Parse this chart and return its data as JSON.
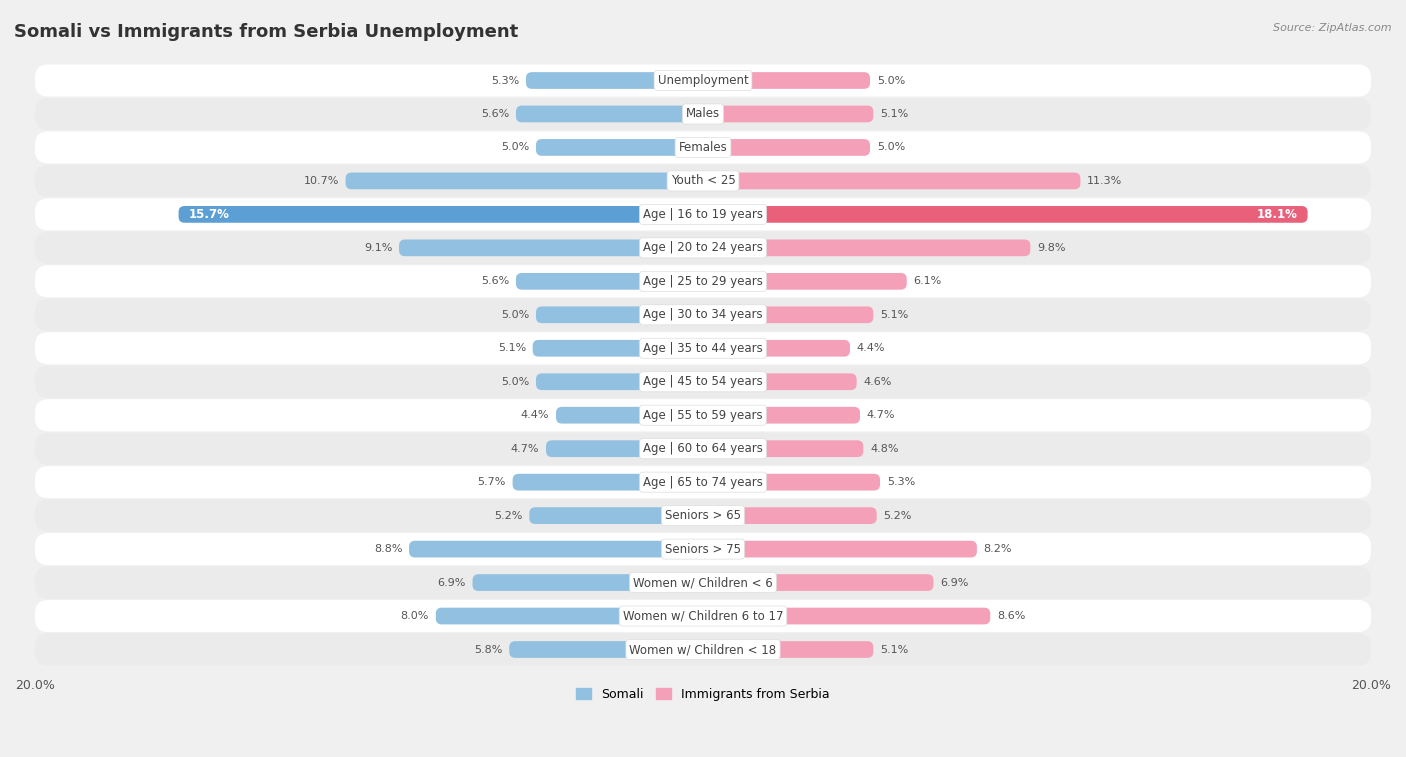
{
  "title": "Somali vs Immigrants from Serbia Unemployment",
  "source": "Source: ZipAtlas.com",
  "categories": [
    "Unemployment",
    "Males",
    "Females",
    "Youth < 25",
    "Age | 16 to 19 years",
    "Age | 20 to 24 years",
    "Age | 25 to 29 years",
    "Age | 30 to 34 years",
    "Age | 35 to 44 years",
    "Age | 45 to 54 years",
    "Age | 55 to 59 years",
    "Age | 60 to 64 years",
    "Age | 65 to 74 years",
    "Seniors > 65",
    "Seniors > 75",
    "Women w/ Children < 6",
    "Women w/ Children 6 to 17",
    "Women w/ Children < 18"
  ],
  "somali": [
    5.3,
    5.6,
    5.0,
    10.7,
    15.7,
    9.1,
    5.6,
    5.0,
    5.1,
    5.0,
    4.4,
    4.7,
    5.7,
    5.2,
    8.8,
    6.9,
    8.0,
    5.8
  ],
  "serbia": [
    5.0,
    5.1,
    5.0,
    11.3,
    18.1,
    9.8,
    6.1,
    5.1,
    4.4,
    4.6,
    4.7,
    4.8,
    5.3,
    5.2,
    8.2,
    6.9,
    8.6,
    5.1
  ],
  "somali_color": "#92c0e0",
  "serbia_color": "#f4a0b8",
  "somali_highlight_color": "#5b9fd4",
  "serbia_highlight_color": "#e8607a",
  "row_bg_light": "#f5f5f5",
  "row_bg_dark": "#e8e8e8",
  "background_color": "#f0f0f0",
  "xlim": 20.0,
  "bar_height": 0.5,
  "legend_somali": "Somali",
  "legend_serbia": "Immigrants from Serbia",
  "highlight_rows": [
    4
  ]
}
